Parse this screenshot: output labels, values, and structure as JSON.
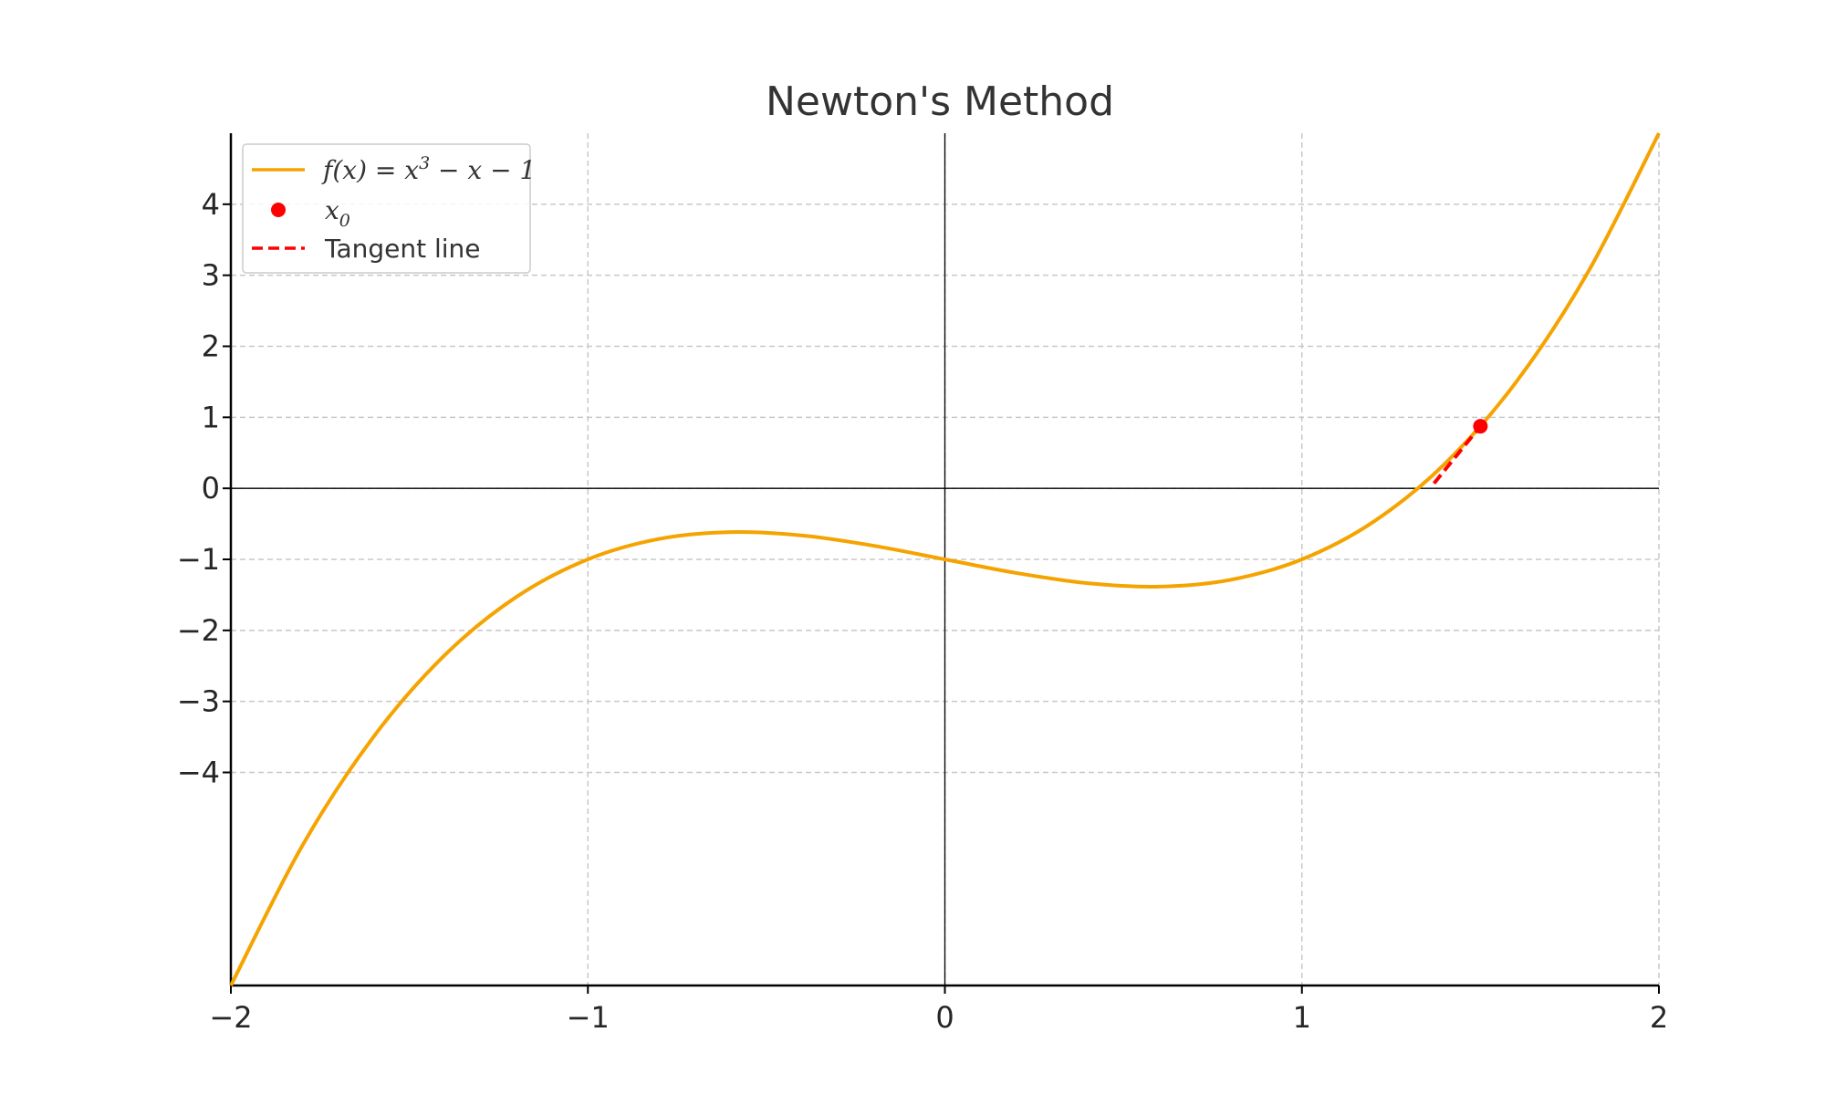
{
  "chart_data": {
    "type": "line",
    "title": "Newton's Method",
    "xlabel": "",
    "ylabel": "",
    "xlim": [
      -2,
      2
    ],
    "ylim": [
      -7,
      5
    ],
    "grid": true,
    "legend_position": "top-left",
    "x_ticks": [
      -2,
      -1,
      0,
      1,
      2
    ],
    "x_tick_labels": [
      "−2",
      "−1",
      "0",
      "1",
      "2"
    ],
    "y_ticks": [
      -4,
      -3,
      -2,
      -1,
      0,
      1,
      2,
      3,
      4
    ],
    "y_tick_labels": [
      "−4",
      "−3",
      "−2",
      "−1",
      "0",
      "1",
      "2",
      "3",
      "4"
    ],
    "series": [
      {
        "name": "f(x) = x³ − x − 1",
        "kind": "line",
        "color": "#f5a300",
        "x": [
          -2.0,
          -1.8,
          -1.6,
          -1.4,
          -1.2,
          -1.0,
          -0.8,
          -0.6,
          -0.4,
          -0.2,
          0.0,
          0.2,
          0.4,
          0.6,
          0.8,
          1.0,
          1.2,
          1.4,
          1.6,
          1.8,
          2.0
        ],
        "y": [
          -7.0,
          -5.032,
          -3.496,
          -2.344,
          -1.528,
          -1.0,
          -0.712,
          -0.616,
          -0.664,
          -0.808,
          -1.0,
          -1.192,
          -1.336,
          -1.384,
          -1.288,
          -1.0,
          -0.472,
          0.344,
          1.496,
          3.032,
          5.0
        ]
      },
      {
        "name": "x₀",
        "kind": "point",
        "color": "#ff0000",
        "x": [
          1.5
        ],
        "y": [
          0.875
        ]
      },
      {
        "name": "Tangent line",
        "kind": "dashed-line",
        "color": "#ff0000",
        "x": [
          1.37,
          1.5
        ],
        "y": [
          0.07,
          0.875
        ]
      }
    ]
  },
  "legend": {
    "items": [
      {
        "label_prefix": "f(x) = x",
        "label_sup": "3",
        "label_suffix": " − x − 1"
      },
      {
        "label_prefix": "x",
        "label_sub": "0"
      },
      {
        "label": "Tangent line"
      }
    ]
  }
}
